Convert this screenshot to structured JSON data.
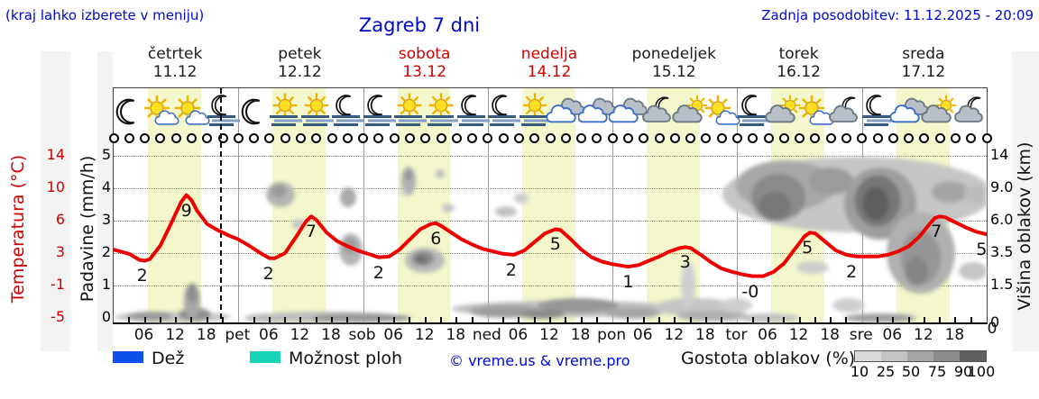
{
  "header": {
    "note": "(kraj lahko izberete v meniju)",
    "title": "Zagreb 7 dni",
    "updated": "Zadnja posodobitev: 11.12.2025 - 20:09"
  },
  "days": [
    {
      "name": "četrtek",
      "date": "11.12",
      "highlight": false
    },
    {
      "name": "petek",
      "date": "12.12",
      "highlight": false
    },
    {
      "name": "sobota",
      "date": "13.12",
      "highlight": true
    },
    {
      "name": "nedelja",
      "date": "14.12",
      "highlight": true
    },
    {
      "name": "ponedeljek",
      "date": "15.12",
      "highlight": false
    },
    {
      "name": "torek",
      "date": "16.12",
      "highlight": false
    },
    {
      "name": "sreda",
      "date": "17.12",
      "highlight": false
    }
  ],
  "symbols": {
    "weather_icons": [
      "moon",
      "sun-cloud",
      "sun-cloud",
      "moon-fog",
      "moon",
      "sun-fog",
      "sun-fog",
      "moon-fog",
      "moon-fog",
      "sun-fog",
      "sun-fog",
      "moon-fog",
      "moon-fog",
      "sun-fog",
      "cloud",
      "cloud",
      "cloud",
      "moon-cloud",
      "cloud-sun",
      "sun-cloud",
      "moon-fog",
      "cloud-sun",
      "sun-cloud",
      "moon-cloud",
      "moon-fog",
      "cloud",
      "cloud-sun",
      "moon-cloud"
    ],
    "precip_marker": "open-circle",
    "precip_marker_count": 57
  },
  "chart_data": {
    "type": "line",
    "title": "Zagreb 7 dni",
    "x_axis": {
      "unit": "hours from 11.12 00:00",
      "total_hours": 168,
      "hour_ticklabels": [
        "06",
        "12",
        "18"
      ],
      "day_boundary_labels": [
        "pet",
        "sob",
        "ned",
        "pon",
        "tor",
        "sre"
      ],
      "right_end_label": "0"
    },
    "temp_axis": {
      "label": "Temperatura (°C)",
      "ticks": [
        "14",
        "10",
        "6",
        "3",
        "-1",
        "-5"
      ],
      "range": [
        -5,
        14
      ],
      "color": "#cc0000"
    },
    "precip_axis": {
      "label": "Padavine (mm/h)",
      "ticks": [
        "5",
        "4",
        "3",
        "2",
        "1",
        "0"
      ],
      "range": [
        0,
        5
      ]
    },
    "cloud_axis": {
      "label": "Višina oblakov (km)",
      "ticks": [
        "14",
        "9.0",
        "6.0",
        "3.5",
        "1.5",
        "0"
      ]
    },
    "grid": true,
    "now_hour": 20.5,
    "daylight_hours": [
      6.6,
      16.8
    ],
    "daylight_color": "#f3f7cb",
    "series": [
      {
        "name": "Temperatura (°C)",
        "color": "#ee0000",
        "points": [
          [
            0,
            3.0
          ],
          [
            3,
            2.5
          ],
          [
            5,
            1.8
          ],
          [
            6,
            1.7
          ],
          [
            7,
            1.9
          ],
          [
            9,
            3.5
          ],
          [
            11,
            6.0
          ],
          [
            13,
            8.6
          ],
          [
            14,
            9.4
          ],
          [
            15,
            8.8
          ],
          [
            16,
            7.6
          ],
          [
            18,
            6.0
          ],
          [
            20,
            5.3
          ],
          [
            22,
            4.7
          ],
          [
            24,
            4.2
          ],
          [
            26,
            3.5
          ],
          [
            28,
            2.7
          ],
          [
            30,
            2.0
          ],
          [
            31,
            2.0
          ],
          [
            33,
            2.6
          ],
          [
            35,
            4.4
          ],
          [
            37,
            6.3
          ],
          [
            38,
            6.9
          ],
          [
            39,
            6.5
          ],
          [
            41,
            5.0
          ],
          [
            43,
            4.0
          ],
          [
            45,
            3.4
          ],
          [
            47,
            2.9
          ],
          [
            49,
            2.5
          ],
          [
            51,
            2.1
          ],
          [
            53,
            2.2
          ],
          [
            55,
            3.0
          ],
          [
            57,
            4.2
          ],
          [
            59,
            5.4
          ],
          [
            61,
            6.0
          ],
          [
            62,
            6.1
          ],
          [
            63,
            5.8
          ],
          [
            65,
            5.0
          ],
          [
            67,
            4.2
          ],
          [
            69,
            3.6
          ],
          [
            71,
            3.1
          ],
          [
            73,
            2.8
          ],
          [
            75,
            2.5
          ],
          [
            77,
            2.4
          ],
          [
            79,
            2.9
          ],
          [
            81,
            3.9
          ],
          [
            83,
            4.9
          ],
          [
            85,
            5.4
          ],
          [
            86,
            5.3
          ],
          [
            88,
            4.2
          ],
          [
            90,
            3.0
          ],
          [
            92,
            2.1
          ],
          [
            94,
            1.6
          ],
          [
            96,
            1.3
          ],
          [
            98,
            1.1
          ],
          [
            99,
            1.0
          ],
          [
            101,
            1.2
          ],
          [
            103,
            1.7
          ],
          [
            105,
            2.2
          ],
          [
            107,
            2.8
          ],
          [
            109,
            3.2
          ],
          [
            110,
            3.3
          ],
          [
            111,
            3.2
          ],
          [
            113,
            2.4
          ],
          [
            115,
            1.5
          ],
          [
            117,
            0.8
          ],
          [
            119,
            0.4
          ],
          [
            121,
            0.1
          ],
          [
            123,
            -0.1
          ],
          [
            125,
            -0.1
          ],
          [
            127,
            0.4
          ],
          [
            129,
            1.4
          ],
          [
            131,
            3.0
          ],
          [
            133,
            4.6
          ],
          [
            134,
            5.0
          ],
          [
            135,
            4.9
          ],
          [
            137,
            3.9
          ],
          [
            139,
            2.9
          ],
          [
            141,
            2.4
          ],
          [
            143,
            2.2
          ],
          [
            145,
            2.2
          ],
          [
            147,
            2.2
          ],
          [
            149,
            2.4
          ],
          [
            151,
            2.8
          ],
          [
            153,
            3.4
          ],
          [
            155,
            4.5
          ],
          [
            157,
            6.0
          ],
          [
            158,
            6.7
          ],
          [
            159,
            6.9
          ],
          [
            160,
            6.8
          ],
          [
            162,
            6.2
          ],
          [
            164,
            5.6
          ],
          [
            166,
            5.1
          ],
          [
            168,
            4.8
          ]
        ]
      }
    ],
    "point_labels": [
      {
        "h": 5.5,
        "t": 1.8,
        "text": "2"
      },
      {
        "h": 14,
        "t": 9.4,
        "text": "9"
      },
      {
        "h": 29.8,
        "t": 2.0,
        "text": "2"
      },
      {
        "h": 38,
        "t": 6.9,
        "text": "7"
      },
      {
        "h": 51,
        "t": 2.1,
        "text": "2"
      },
      {
        "h": 62,
        "t": 6.1,
        "text": "6"
      },
      {
        "h": 76.5,
        "t": 2.4,
        "text": "2"
      },
      {
        "h": 85,
        "t": 5.4,
        "text": "5"
      },
      {
        "h": 99,
        "t": 1.0,
        "text": "1"
      },
      {
        "h": 110,
        "t": 3.3,
        "text": "3"
      },
      {
        "h": 122.5,
        "t": -0.1,
        "text": "-0"
      },
      {
        "h": 133.5,
        "t": 5.0,
        "text": "5"
      },
      {
        "h": 142,
        "t": 2.2,
        "text": "2"
      },
      {
        "h": 158.3,
        "t": 6.9,
        "text": "7"
      },
      {
        "h": 167,
        "t": 4.8,
        "text": "5"
      }
    ],
    "cloud_blobs": [
      [
        65,
        254,
        65,
        6,
        "#c6c6c6"
      ],
      [
        40,
        253,
        25,
        5,
        "#9a9a9a"
      ],
      [
        90,
        251,
        18,
        7,
        "#8f8f8f"
      ],
      [
        87,
        236,
        9,
        20,
        "#a8a8a8"
      ],
      [
        87,
        228,
        6,
        10,
        "#8f8f8f"
      ],
      [
        175,
        255,
        30,
        5,
        "#b5b5b5"
      ],
      [
        235,
        254,
        85,
        6,
        "#bdbdbd"
      ],
      [
        275,
        255,
        55,
        5,
        "#999999"
      ],
      [
        185,
        118,
        16,
        14,
        "#b3b3b3"
      ],
      [
        183,
        114,
        8,
        7,
        "#999999"
      ],
      [
        260,
        121,
        9,
        11,
        "#ababab"
      ],
      [
        263,
        179,
        13,
        18,
        "#b3b3b3"
      ],
      [
        262,
        175,
        7,
        9,
        "#9c9c9c"
      ],
      [
        205,
        151,
        7,
        6,
        "#c6c6c6"
      ],
      [
        327,
        103,
        8,
        16,
        "#b0b0b0"
      ],
      [
        327,
        96,
        5,
        6,
        "#999999"
      ],
      [
        362,
        95,
        5,
        5,
        "#c0c0c0"
      ],
      [
        345,
        191,
        22,
        14,
        "#b9b9b9"
      ],
      [
        343,
        189,
        12,
        8,
        "#8a8a8a"
      ],
      [
        341,
        190,
        6,
        4,
        "#6e6e6e"
      ],
      [
        321,
        115,
        4,
        4,
        "#cfcfcf"
      ],
      [
        371,
        133,
        7,
        5,
        "#c9c9c9"
      ],
      [
        435,
        137,
        12,
        6,
        "#c2c2c2"
      ],
      [
        452,
        122,
        8,
        6,
        "#cccccc"
      ],
      [
        505,
        245,
        130,
        9,
        "#bdbdbd"
      ],
      [
        435,
        248,
        40,
        7,
        "#9e9e9e"
      ],
      [
        515,
        241,
        45,
        8,
        "#969696"
      ],
      [
        475,
        251,
        25,
        5,
        "#8b8b8b"
      ],
      [
        575,
        250,
        30,
        6,
        "#a5a5a5"
      ],
      [
        645,
        243,
        45,
        10,
        "#c4c4c4"
      ],
      [
        637,
        218,
        8,
        25,
        "#cfcfcf"
      ],
      [
        665,
        253,
        40,
        6,
        "#b0b0b0"
      ],
      [
        690,
        241,
        18,
        8,
        "#cfcfcf"
      ],
      [
        825,
        118,
        150,
        42,
        "#c5c5c5"
      ],
      [
        745,
        108,
        55,
        28,
        "#a8a8a8"
      ],
      [
        737,
        121,
        30,
        26,
        "#8a8a8a"
      ],
      [
        733,
        131,
        18,
        16,
        "#787878"
      ],
      [
        795,
        103,
        25,
        15,
        "#9b9b9b"
      ],
      [
        850,
        128,
        40,
        40,
        "#9e9e9e"
      ],
      [
        847,
        125,
        25,
        28,
        "#757575"
      ],
      [
        845,
        128,
        14,
        18,
        "#5e5e5e"
      ],
      [
        895,
        183,
        38,
        45,
        "#b0b0b0"
      ],
      [
        895,
        188,
        22,
        30,
        "#969696"
      ],
      [
        890,
        203,
        12,
        16,
        "#848484"
      ],
      [
        927,
        115,
        20,
        12,
        "#a5a5a5"
      ],
      [
        957,
        118,
        14,
        10,
        "#bcbcbc"
      ],
      [
        775,
        199,
        18,
        7,
        "#cdcdcd"
      ],
      [
        953,
        203,
        16,
        10,
        "#c5c5c5"
      ],
      [
        850,
        255,
        40,
        5,
        "#9f9f9f"
      ],
      [
        725,
        255,
        35,
        5,
        "#c2c2c2"
      ],
      [
        815,
        241,
        18,
        8,
        "#cfcfcf"
      ]
    ]
  },
  "legend": {
    "rain_label": "Dež",
    "rain_color": "#0d52e8",
    "showers_label": "Možnost ploh",
    "showers_color": "#17d3b8",
    "copyright": "© vreme.us & vreme.pro",
    "density_label": "Gostota oblakov (%)",
    "density_ticks": [
      "10",
      "25",
      "50",
      "75",
      "90",
      "100"
    ],
    "density_colors": [
      "#d9d9d9",
      "#c4c4c4",
      "#a6a6a6",
      "#8c8c8c",
      "#5f5f5f"
    ]
  }
}
